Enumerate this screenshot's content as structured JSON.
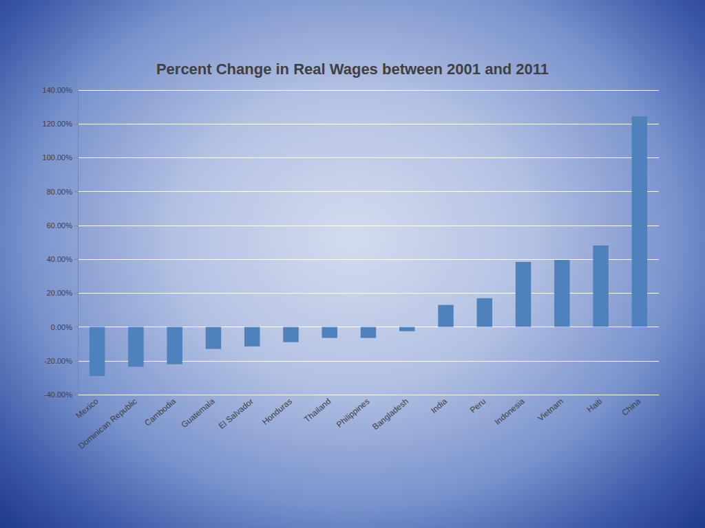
{
  "chart_data": {
    "type": "bar",
    "title": "Percent Change in Real Wages between 2001 and 2011",
    "categories": [
      "Mexico",
      "Dominican Republic",
      "Cambodia",
      "Guatemala",
      "El Salvador",
      "Honduras",
      "Thailand",
      "Philippines",
      "Bangladesh",
      "India",
      "Peru",
      "Indonesia",
      "Vietnam",
      "Haiti",
      "China"
    ],
    "values": [
      -29,
      -23.5,
      -22,
      -13,
      -11.5,
      -9,
      -6.5,
      -6.5,
      -2.5,
      13,
      17,
      38.4,
      39.6,
      48.2,
      124.5
    ],
    "color": "#4f81bd",
    "ylim": [
      -40,
      140
    ],
    "yticks": [
      {
        "value": -40,
        "label": "-40.00%"
      },
      {
        "value": -20,
        "label": "-20.00%"
      },
      {
        "value": 0,
        "label": "0.00%"
      },
      {
        "value": 20,
        "label": "20.00%"
      },
      {
        "value": 40,
        "label": "40.00%"
      },
      {
        "value": 60,
        "label": "60.00%"
      },
      {
        "value": 80,
        "label": "80.00%"
      },
      {
        "value": 100,
        "label": "100.00%"
      },
      {
        "value": 120,
        "label": "120.00%"
      },
      {
        "value": 140,
        "label": "140.00%"
      }
    ],
    "grid": true
  }
}
